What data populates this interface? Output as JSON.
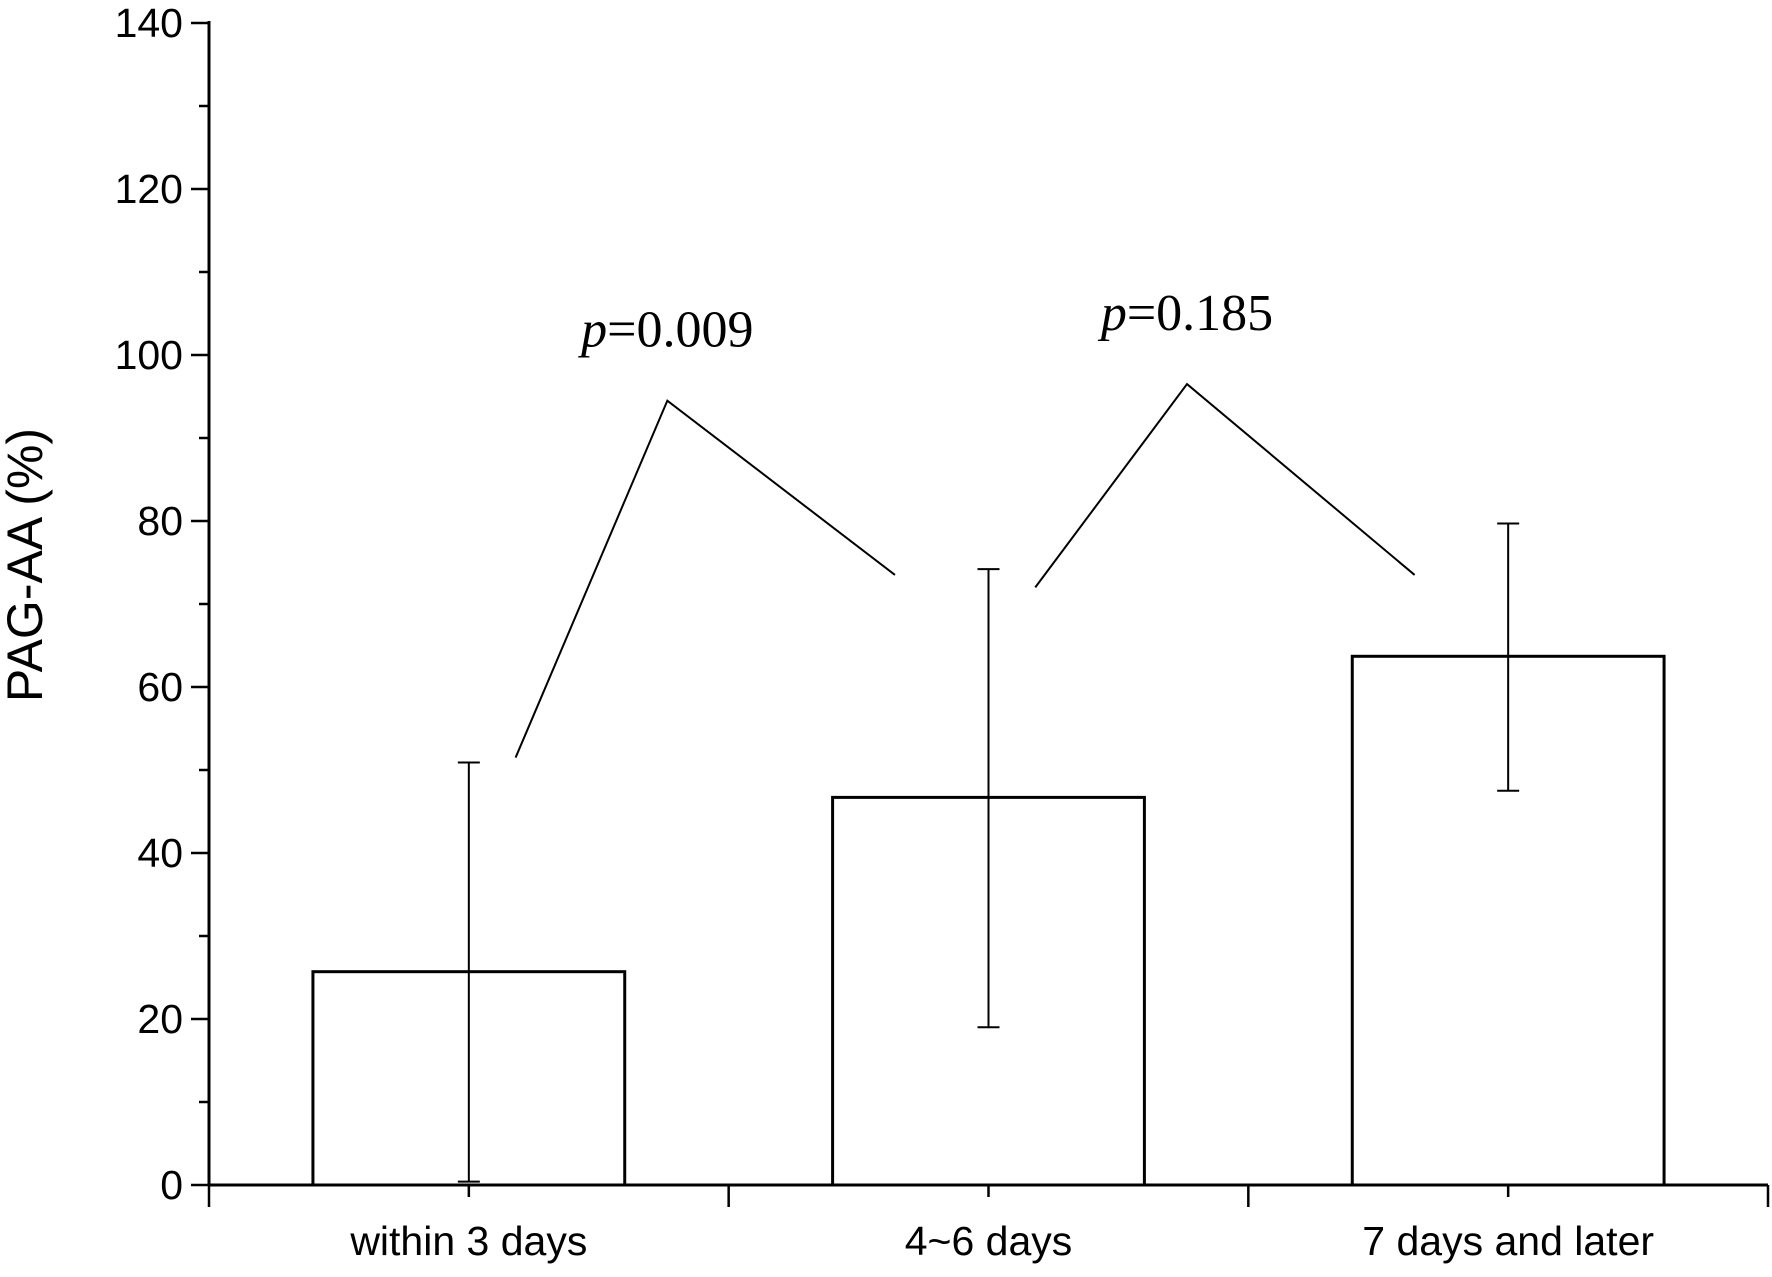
{
  "chart_data": {
    "type": "bar",
    "title": "",
    "xlabel": "",
    "ylabel": "PAG-AA (%)",
    "ylim": [
      0,
      140
    ],
    "yticks": [
      0,
      20,
      40,
      60,
      80,
      100,
      120,
      140
    ],
    "y_minor_step": 10,
    "grid": false,
    "legend": "none",
    "categories": [
      "within 3 days",
      "4~6 days",
      "7 days and later"
    ],
    "values": [
      25.7,
      46.7,
      63.7
    ],
    "errors": [
      {
        "low": 0.4,
        "high": 50.9
      },
      {
        "low": 19.0,
        "high": 74.2
      },
      {
        "low": 47.5,
        "high": 79.7
      }
    ],
    "annotations": [
      {
        "p_symbol": "p",
        "text": "=0.009",
        "from_category": 0,
        "to_category": 1,
        "left_end_y": 51.5,
        "apex_y": 94.5,
        "right_end_y": 73.5,
        "label_y": 101
      },
      {
        "p_symbol": "p",
        "text": "=0.185",
        "from_category": 1,
        "to_category": 2,
        "left_end_y": 72,
        "apex_y": 96.5,
        "right_end_y": 73.5,
        "label_y": 103
      }
    ],
    "colors": {
      "bar_fill": "#ffffff",
      "bar_stroke": "#000000",
      "axis": "#000000"
    }
  }
}
